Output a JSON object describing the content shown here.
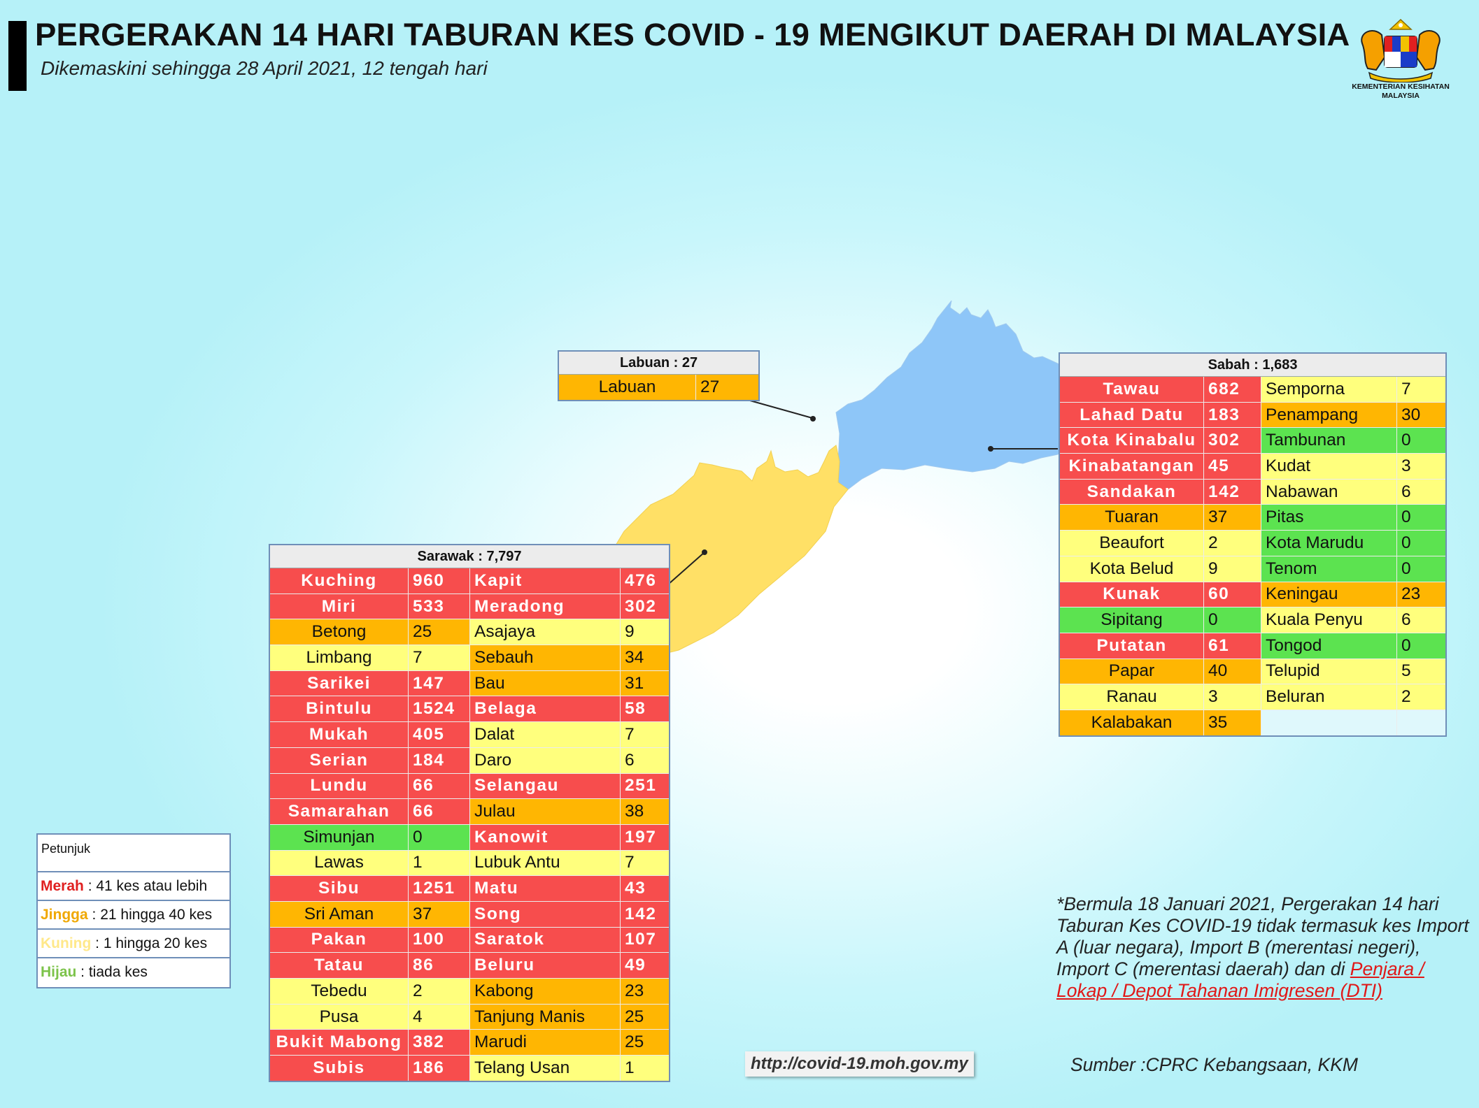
{
  "header": {
    "title": "PERGERAKAN 14 HARI TABURAN KES COVID - 19 MENGIKUT DAERAH DI MALAYSIA",
    "subtitle": "Dikemaskini sehingga 28 April 2021, 12 tengah hari"
  },
  "logo": {
    "line1": "KEMENTERIAN KESIHATAN",
    "line2": "MALAYSIA"
  },
  "colors": {
    "merah": "#f74d4d",
    "jingga": "#ffb602",
    "kuning": "#ffff7d",
    "hijau": "#5ce350",
    "sabah_map": "#8ec6f8",
    "sarawak_map": "#ffe066"
  },
  "labuan": {
    "header": "Labuan : 27",
    "rows": [
      {
        "name": "Labuan",
        "value": "27",
        "level": "org"
      }
    ]
  },
  "sabah": {
    "header": "Sabah : 1,683",
    "rows": [
      [
        {
          "name": "Tawau",
          "value": "682",
          "level": "red"
        },
        {
          "name": "Semporna",
          "value": "7",
          "level": "yel"
        }
      ],
      [
        {
          "name": "Lahad Datu",
          "value": "183",
          "level": "red"
        },
        {
          "name": "Penampang",
          "value": "30",
          "level": "org"
        }
      ],
      [
        {
          "name": "Kota Kinabalu",
          "value": "302",
          "level": "red"
        },
        {
          "name": "Tambunan",
          "value": "0",
          "level": "grn"
        }
      ],
      [
        {
          "name": "Kinabatangan",
          "value": "45",
          "level": "red"
        },
        {
          "name": "Kudat",
          "value": "3",
          "level": "yel"
        }
      ],
      [
        {
          "name": "Sandakan",
          "value": "142",
          "level": "red"
        },
        {
          "name": "Nabawan",
          "value": "6",
          "level": "yel"
        }
      ],
      [
        {
          "name": "Tuaran",
          "value": "37",
          "level": "org"
        },
        {
          "name": "Pitas",
          "value": "0",
          "level": "grn"
        }
      ],
      [
        {
          "name": "Beaufort",
          "value": "2",
          "level": "yel"
        },
        {
          "name": "Kota Marudu",
          "value": "0",
          "level": "grn"
        }
      ],
      [
        {
          "name": "Kota Belud",
          "value": "9",
          "level": "yel"
        },
        {
          "name": "Tenom",
          "value": "0",
          "level": "grn"
        }
      ],
      [
        {
          "name": "Kunak",
          "value": "60",
          "level": "red"
        },
        {
          "name": "Keningau",
          "value": "23",
          "level": "org"
        }
      ],
      [
        {
          "name": "Sipitang",
          "value": "0",
          "level": "grn"
        },
        {
          "name": "Kuala Penyu",
          "value": "6",
          "level": "yel"
        }
      ],
      [
        {
          "name": "Putatan",
          "value": "61",
          "level": "red"
        },
        {
          "name": "Tongod",
          "value": "0",
          "level": "grn"
        }
      ],
      [
        {
          "name": "Papar",
          "value": "40",
          "level": "org"
        },
        {
          "name": "Telupid",
          "value": "5",
          "level": "yel"
        }
      ],
      [
        {
          "name": "Ranau",
          "value": "3",
          "level": "yel"
        },
        {
          "name": "Beluran",
          "value": "2",
          "level": "yel"
        }
      ],
      [
        {
          "name": "Kalabakan",
          "value": "35",
          "level": "org"
        },
        {
          "name": "",
          "value": "",
          "level": "emp"
        }
      ]
    ]
  },
  "sarawak": {
    "header": "Sarawak : 7,797",
    "rows": [
      [
        {
          "name": "Kuching",
          "value": "960",
          "level": "red"
        },
        {
          "name": "Kapit",
          "value": "476",
          "level": "red"
        }
      ],
      [
        {
          "name": "Miri",
          "value": "533",
          "level": "red"
        },
        {
          "name": "Meradong",
          "value": "302",
          "level": "red"
        }
      ],
      [
        {
          "name": "Betong",
          "value": "25",
          "level": "org"
        },
        {
          "name": "Asajaya",
          "value": "9",
          "level": "yel"
        }
      ],
      [
        {
          "name": "Limbang",
          "value": "7",
          "level": "yel"
        },
        {
          "name": "Sebauh",
          "value": "34",
          "level": "org"
        }
      ],
      [
        {
          "name": "Sarikei",
          "value": "147",
          "level": "red"
        },
        {
          "name": "Bau",
          "value": "31",
          "level": "org"
        }
      ],
      [
        {
          "name": "Bintulu",
          "value": "1524",
          "level": "red"
        },
        {
          "name": "Belaga",
          "value": "58",
          "level": "red"
        }
      ],
      [
        {
          "name": "Mukah",
          "value": "405",
          "level": "red"
        },
        {
          "name": "Dalat",
          "value": "7",
          "level": "yel"
        }
      ],
      [
        {
          "name": "Serian",
          "value": "184",
          "level": "red"
        },
        {
          "name": "Daro",
          "value": "6",
          "level": "yel"
        }
      ],
      [
        {
          "name": "Lundu",
          "value": "66",
          "level": "red"
        },
        {
          "name": "Selangau",
          "value": "251",
          "level": "red"
        }
      ],
      [
        {
          "name": "Samarahan",
          "value": "66",
          "level": "red"
        },
        {
          "name": "Julau",
          "value": "38",
          "level": "org"
        }
      ],
      [
        {
          "name": "Simunjan",
          "value": "0",
          "level": "grn"
        },
        {
          "name": "Kanowit",
          "value": "197",
          "level": "red"
        }
      ],
      [
        {
          "name": "Lawas",
          "value": "1",
          "level": "yel"
        },
        {
          "name": "Lubuk Antu",
          "value": "7",
          "level": "yel"
        }
      ],
      [
        {
          "name": "Sibu",
          "value": "1251",
          "level": "red"
        },
        {
          "name": "Matu",
          "value": "43",
          "level": "red"
        }
      ],
      [
        {
          "name": "Sri Aman",
          "value": "37",
          "level": "org"
        },
        {
          "name": "Song",
          "value": "142",
          "level": "red"
        }
      ],
      [
        {
          "name": "Pakan",
          "value": "100",
          "level": "red"
        },
        {
          "name": "Saratok",
          "value": "107",
          "level": "red"
        }
      ],
      [
        {
          "name": "Tatau",
          "value": "86",
          "level": "red"
        },
        {
          "name": "Beluru",
          "value": "49",
          "level": "red"
        }
      ],
      [
        {
          "name": "Tebedu",
          "value": "2",
          "level": "yel"
        },
        {
          "name": "Kabong",
          "value": "23",
          "level": "org"
        }
      ],
      [
        {
          "name": "Pusa",
          "value": "4",
          "level": "yel"
        },
        {
          "name": "Tanjung Manis",
          "value": "25",
          "level": "org"
        }
      ],
      [
        {
          "name": "Bukit Mabong",
          "value": "382",
          "level": "red"
        },
        {
          "name": "Marudi",
          "value": "25",
          "level": "org"
        }
      ],
      [
        {
          "name": "Subis",
          "value": "186",
          "level": "red"
        },
        {
          "name": "Telang Usan",
          "value": "1",
          "level": "yel"
        }
      ]
    ]
  },
  "legend": {
    "title": "Petunjuk",
    "items": [
      {
        "key": "Merah",
        "text": " : 41 kes atau lebih"
      },
      {
        "key": "Jingga",
        "text": " : 21 hingga 40 kes"
      },
      {
        "key": "Kuning",
        "text": " : 1 hingga 20 kes"
      },
      {
        "key": "Hijau",
        "text": " : tiada kes"
      }
    ]
  },
  "note": {
    "text": "*Bermula 18 Januari 2021, Pergerakan 14 hari Taburan Kes COVID-19 tidak termasuk kes Import A (luar negara), Import B (merentasi negeri), Import C (merentasi daerah) dan di ",
    "link": "Penjara / Lokap / Depot Tahanan Imigresen (DTI)"
  },
  "source": "Sumber :CPRC Kebangsaan,  KKM",
  "url": "http://covid-19.moh.gov.my"
}
